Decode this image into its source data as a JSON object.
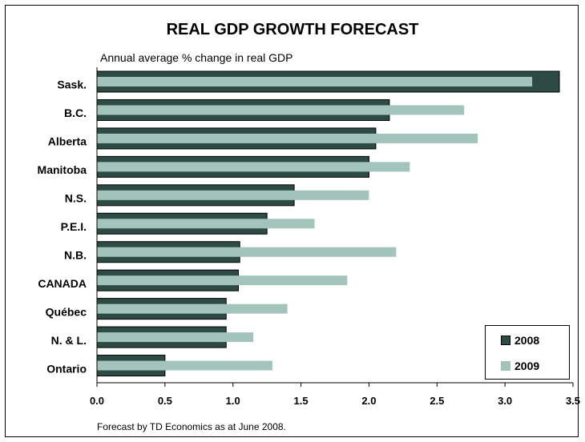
{
  "chart_data": {
    "type": "bar",
    "orientation": "horizontal",
    "title": "REAL GDP GROWTH FORECAST",
    "subtitle": "Annual average % change in real GDP",
    "footnote": "Forecast by TD Economics as at June 2008.",
    "categories": [
      "Sask.",
      "B.C.",
      "Alberta",
      "Manitoba",
      "N.S.",
      "P.E.I.",
      "N.B.",
      "CANADA",
      "Québec",
      "N. & L.",
      "Ontario"
    ],
    "series": [
      {
        "name": "2008",
        "color": "#2e4a44",
        "values": [
          3.4,
          2.15,
          2.05,
          2.0,
          1.45,
          1.25,
          1.05,
          1.04,
          0.95,
          0.95,
          0.5
        ]
      },
      {
        "name": "2009",
        "color": "#a3c4bb",
        "values": [
          3.2,
          2.7,
          2.8,
          2.3,
          2.0,
          1.6,
          2.2,
          1.84,
          1.4,
          1.15,
          1.29
        ]
      }
    ],
    "xlim": [
      0,
      3.5
    ],
    "xticks": [
      "0.0",
      "0.5",
      "1.0",
      "1.5",
      "2.0",
      "2.5",
      "3.0",
      "3.5"
    ],
    "legend_position": "bottom-right",
    "grid": false
  }
}
